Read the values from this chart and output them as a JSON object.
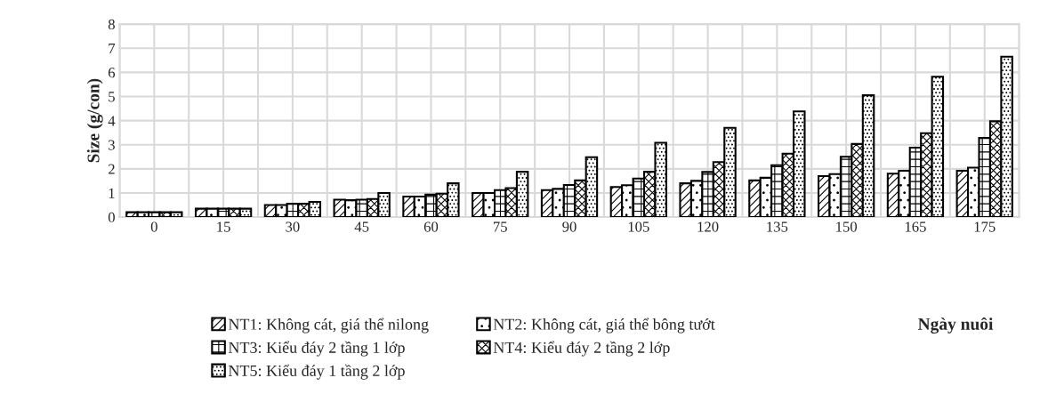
{
  "chart_data": {
    "type": "bar",
    "ylabel": "Size (g/con)",
    "xlabel": "Ngày nuôi",
    "categories": [
      "0",
      "15",
      "30",
      "45",
      "60",
      "75",
      "90",
      "105",
      "120",
      "135",
      "150",
      "165",
      "175"
    ],
    "ylim": [
      0,
      8
    ],
    "yticks": [
      0,
      1,
      2,
      3,
      4,
      5,
      6,
      7,
      8
    ],
    "grid": true,
    "legend": "bottom",
    "series": [
      {
        "name": "NT1: Không cát, giá thể nilong",
        "color": "#000000",
        "values": [
          0.2,
          0.35,
          0.5,
          0.72,
          0.85,
          1.0,
          1.12,
          1.25,
          1.4,
          1.52,
          1.7,
          1.8,
          1.92
        ]
      },
      {
        "name": "NT2: Không cát, giá thể bông tướt",
        "color": "#000000",
        "values": [
          0.2,
          0.35,
          0.5,
          0.7,
          0.85,
          1.0,
          1.17,
          1.32,
          1.5,
          1.63,
          1.78,
          1.92,
          2.05
        ]
      },
      {
        "name": "NT3: Kiểu đáy 2 tầng 1 lớp",
        "color": "#000000",
        "values": [
          0.2,
          0.35,
          0.55,
          0.72,
          0.93,
          1.12,
          1.33,
          1.6,
          1.87,
          2.15,
          2.5,
          2.88,
          3.28
        ]
      },
      {
        "name": "NT4: Kiểu đáy 2 tầng 2 lớp",
        "color": "#000000",
        "values": [
          0.2,
          0.35,
          0.55,
          0.75,
          0.97,
          1.2,
          1.52,
          1.88,
          2.28,
          2.63,
          3.03,
          3.48,
          3.97
        ]
      },
      {
        "name": "NT5: Kiểu đáy 1 tầng 2 lớp",
        "color": "#000000",
        "values": [
          0.2,
          0.35,
          0.63,
          1.0,
          1.4,
          1.88,
          2.48,
          3.08,
          3.7,
          4.38,
          5.05,
          5.82,
          6.65
        ]
      }
    ]
  }
}
